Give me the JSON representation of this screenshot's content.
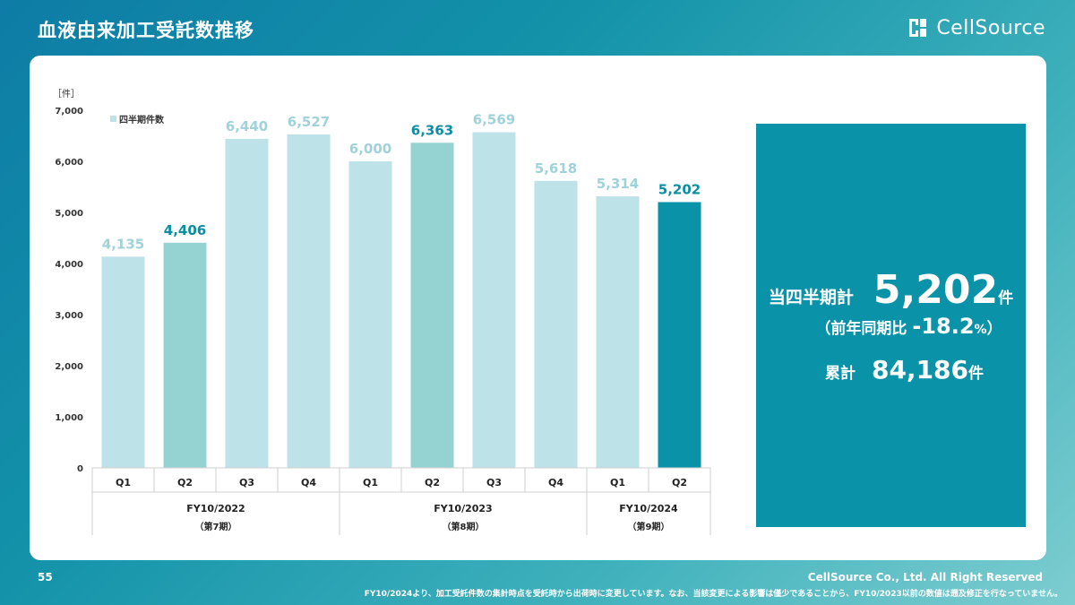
{
  "header": {
    "title": "血液由来加工受託数推移",
    "logo_text": "CellSource"
  },
  "chart_data": {
    "type": "bar",
    "unit_label": "［件］",
    "legend": "四半期件数",
    "ylim": [
      0,
      7000
    ],
    "yticks": [
      0,
      1000,
      2000,
      3000,
      4000,
      5000,
      6000,
      7000
    ],
    "ytick_labels": [
      "0",
      "1,000",
      "2,000",
      "3,000",
      "4,000",
      "5,000",
      "6,000",
      "7,000"
    ],
    "bars": [
      {
        "quarter": "Q1",
        "value": 4135,
        "label": "4,135",
        "fill": "#bde2e8",
        "label_color": "#9fd2da"
      },
      {
        "quarter": "Q2",
        "value": 4406,
        "label": "4,406",
        "fill": "#95d3d3",
        "label_color": "#0a8ea3"
      },
      {
        "quarter": "Q3",
        "value": 6440,
        "label": "6,440",
        "fill": "#bde2e8",
        "label_color": "#9fd2da"
      },
      {
        "quarter": "Q4",
        "value": 6527,
        "label": "6,527",
        "fill": "#bde2e8",
        "label_color": "#9fd2da"
      },
      {
        "quarter": "Q1",
        "value": 6000,
        "label": "6,000",
        "fill": "#bde2e8",
        "label_color": "#9fd2da"
      },
      {
        "quarter": "Q2",
        "value": 6363,
        "label": "6,363",
        "fill": "#95d3d3",
        "label_color": "#0a8ea3"
      },
      {
        "quarter": "Q3",
        "value": 6569,
        "label": "6,569",
        "fill": "#bde2e8",
        "label_color": "#9fd2da"
      },
      {
        "quarter": "Q4",
        "value": 5618,
        "label": "5,618",
        "fill": "#bde2e8",
        "label_color": "#9fd2da"
      },
      {
        "quarter": "Q1",
        "value": 5314,
        "label": "5,314",
        "fill": "#bde2e8",
        "label_color": "#9fd2da"
      },
      {
        "quarter": "Q2",
        "value": 5202,
        "label": "5,202",
        "fill": "#0a93a8",
        "label_color": "#0a8ea3"
      }
    ],
    "groups": [
      {
        "name": "FY10/2022",
        "sub": "（第7期）",
        "count": 4
      },
      {
        "name": "FY10/2023",
        "sub": "（第8期）",
        "count": 4
      },
      {
        "name": "FY10/2024",
        "sub": "（第9期）",
        "count": 2
      }
    ]
  },
  "summary": {
    "current_label": "当四半期計",
    "current_value": "5,202",
    "unit": "件",
    "yoy_prefix": "（前年同期比",
    "yoy_value": "-18.2",
    "yoy_pct": "%",
    "yoy_suffix": "）",
    "cumulative_label": "累計",
    "cumulative_value": "84,186"
  },
  "footer": {
    "page_number": "55",
    "copyright": "CellSource Co., Ltd. All Right Reserved",
    "note": "FY10/2024より、加工受託件数の集計時点を受託時から出荷時に変更しています。なお、当該変更による影響は僅少であることから、FY10/2023以前の数値は遡及修正を行なっていません。"
  },
  "colors": {
    "accent": "#0a93a8",
    "light_bar": "#bde2e8",
    "mid_bar": "#95d3d3"
  }
}
